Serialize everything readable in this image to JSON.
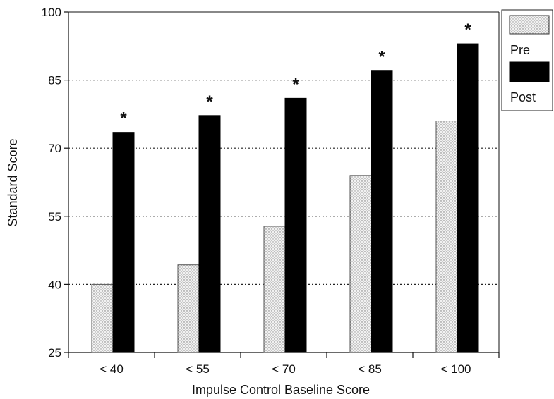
{
  "chart_data": {
    "type": "bar",
    "xlabel": "Impulse Control Baseline Score",
    "ylabel": "Standard Score",
    "categories": [
      "< 40",
      "< 55",
      "< 70",
      "< 85",
      "< 100"
    ],
    "series": [
      {
        "name": "Pre",
        "values": [
          40,
          44.3,
          52.8,
          64,
          76
        ],
        "color": "#e6e6e6",
        "pattern": "dotted-stipple"
      },
      {
        "name": "Post",
        "values": [
          73.5,
          77.2,
          81,
          87,
          93
        ],
        "color": "#000000",
        "pattern": "solid"
      }
    ],
    "yticks": [
      25,
      40,
      55,
      70,
      85,
      100
    ],
    "ylim": [
      25,
      100
    ],
    "grid": {
      "y": true,
      "style": "dotted",
      "values": [
        40,
        55,
        70,
        85
      ]
    },
    "significance_marker": "*",
    "significant_series": "Post",
    "legend": {
      "placement": "top-right"
    }
  }
}
